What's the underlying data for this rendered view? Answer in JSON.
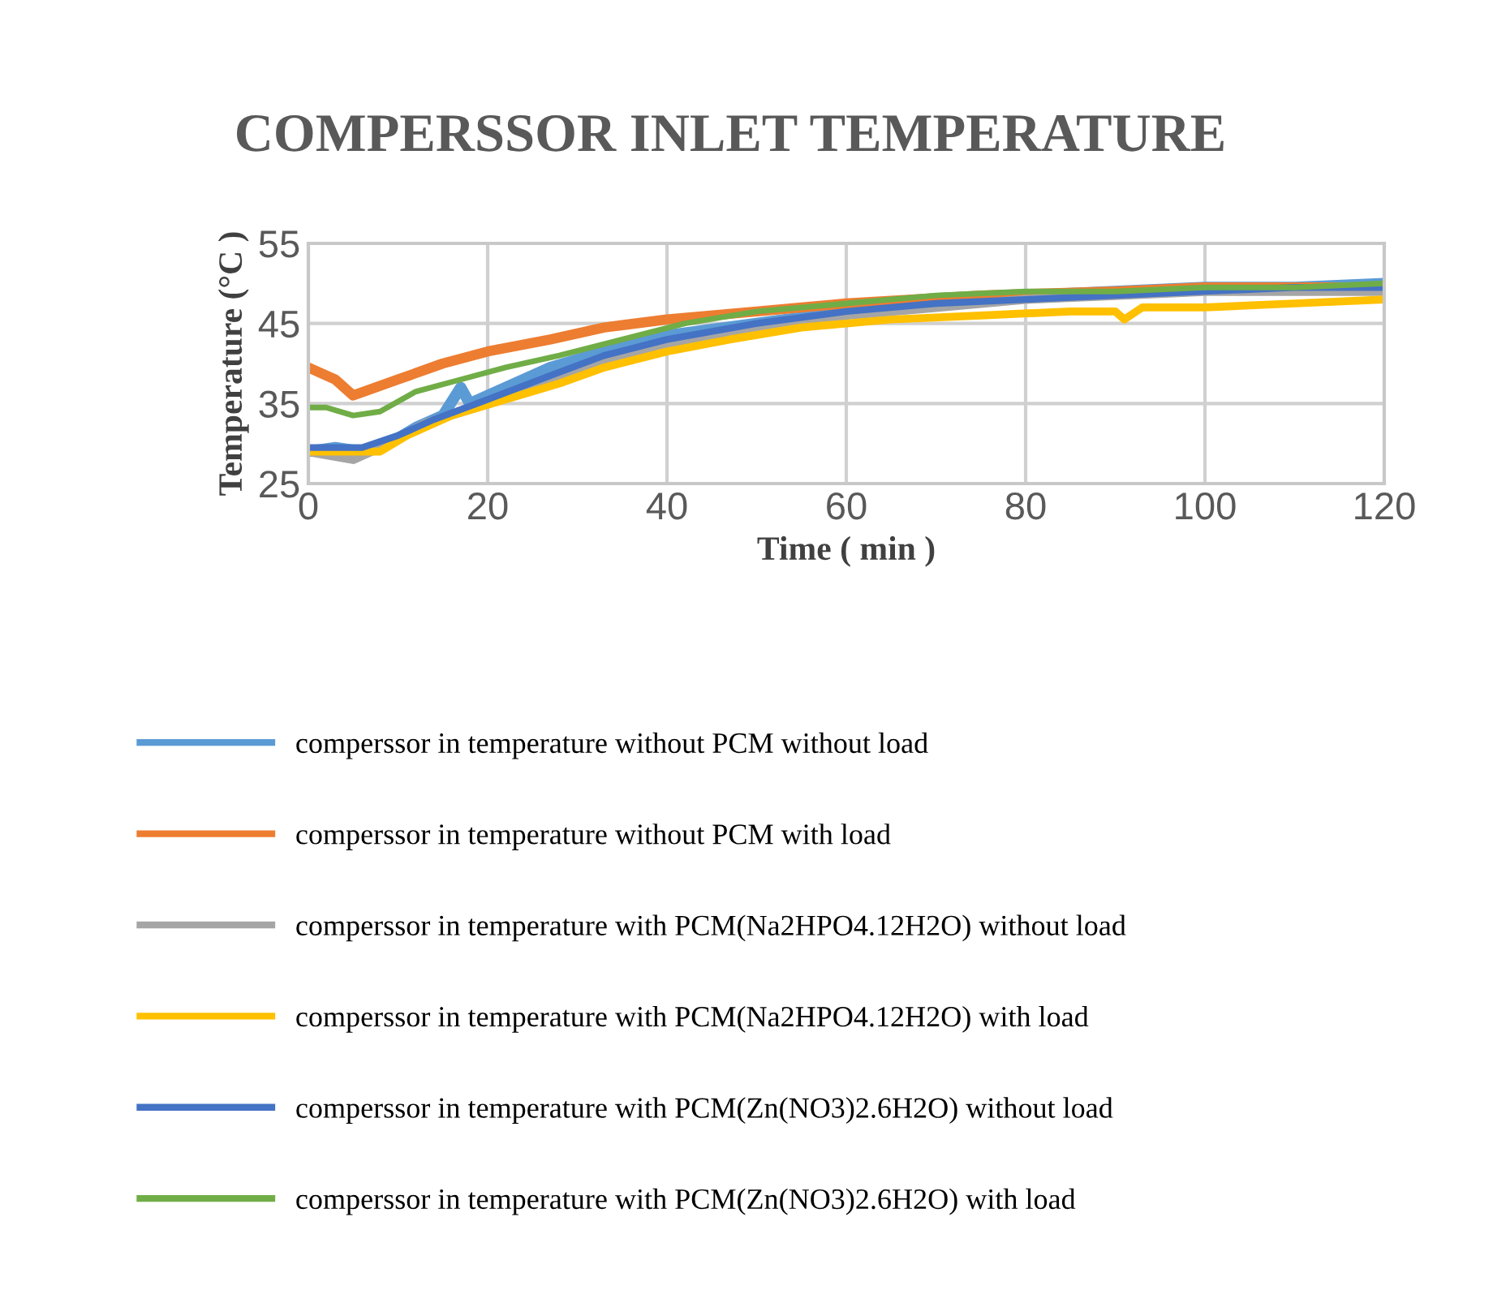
{
  "chart_data": {
    "type": "line",
    "title": "COMPERSSOR INLET TEMPERATURE",
    "xlabel": "Time ( min )",
    "ylabel": "Temperature (°C )",
    "xlim": [
      0,
      120
    ],
    "xticks": [
      0,
      20,
      40,
      60,
      80,
      100,
      120
    ],
    "ylim": [
      25,
      55
    ],
    "yticks": [
      25,
      35,
      45,
      55
    ],
    "grid": true,
    "legend": "bottom",
    "marker": "none",
    "line_style": "solid",
    "series": [
      {
        "name": "comperssor in temperature without PCM without load",
        "color": "#5b9bd5",
        "x": [
          0,
          3,
          6,
          9,
          12,
          15,
          17,
          18,
          22,
          27,
          33,
          40,
          50,
          60,
          70,
          80,
          90,
          100,
          110,
          120
        ],
        "values": [
          29,
          29.5,
          29,
          30,
          32,
          33.5,
          37,
          35,
          37,
          39.5,
          41.5,
          43.5,
          45,
          46.5,
          47.5,
          48.5,
          49,
          49.5,
          49.5,
          50
        ]
      },
      {
        "name": "comperssor in temperature without PCM with load",
        "color": "#ed7d31",
        "x": [
          0,
          3,
          5,
          10,
          15,
          20,
          27,
          33,
          40,
          50,
          60,
          75,
          90,
          100,
          120
        ],
        "values": [
          39.5,
          38,
          36,
          38,
          40,
          41.5,
          43,
          44.5,
          45.5,
          46.5,
          47.5,
          48.5,
          49,
          49.5,
          49.5
        ]
      },
      {
        "name": "comperssor in temperature with PCM(Na2HPO4.12H2O) without load",
        "color": "#a5a5a5",
        "x": [
          0,
          5,
          9,
          13,
          20,
          27,
          33,
          40,
          50,
          60,
          70,
          80,
          90,
          100,
          120
        ],
        "values": [
          29,
          28,
          30,
          32.5,
          35,
          38,
          40.5,
          42.5,
          44.5,
          46,
          47,
          48,
          48.5,
          49,
          49
        ]
      },
      {
        "name": "comperssor in temperature with PCM(Na2HPO4.12H2O) with load",
        "color": "#ffc000",
        "x": [
          0,
          4,
          8,
          11,
          16,
          22,
          28,
          33,
          40,
          47,
          55,
          65,
          75,
          85,
          90,
          91,
          93,
          100,
          110,
          120
        ],
        "values": [
          29,
          29,
          29,
          31,
          33.5,
          35.5,
          37.5,
          39.5,
          41.5,
          43,
          44.5,
          45.5,
          46,
          46.5,
          46.5,
          45.5,
          47,
          47,
          47.5,
          48
        ]
      },
      {
        "name": "comperssor in temperature with PCM(Zn(NO3)2.6H2O) without load",
        "color": "#4472c4",
        "x": [
          0,
          3,
          6,
          10,
          14,
          20,
          27,
          33,
          40,
          50,
          60,
          70,
          80,
          90,
          100,
          110,
          120
        ],
        "values": [
          29.5,
          29.5,
          29.5,
          31,
          33,
          35.5,
          38.5,
          41,
          43,
          45,
          46.5,
          47.5,
          48,
          48.5,
          49,
          49.5,
          49.5
        ]
      },
      {
        "name": "comperssor in temperature with PCM(Zn(NO3)2.6H2O) with load",
        "color": "#70ad47",
        "x": [
          0,
          2,
          5,
          8,
          12,
          17,
          22,
          28,
          35,
          42,
          50,
          60,
          70,
          80,
          90,
          100,
          110,
          120
        ],
        "values": [
          34.5,
          34.5,
          33.5,
          34,
          36.5,
          38,
          39.5,
          41,
          43,
          45,
          46.5,
          47.5,
          48.5,
          49,
          49,
          49.5,
          49.5,
          50
        ]
      }
    ]
  }
}
